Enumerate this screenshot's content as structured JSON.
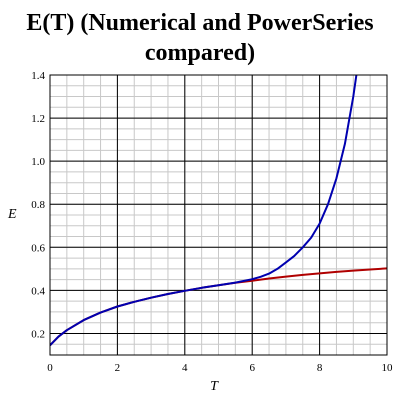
{
  "chart_data": {
    "type": "line",
    "title_lines": [
      "E(T) (Numerical and PowerSeries",
      "compared)"
    ],
    "xlabel": "T",
    "ylabel": "E",
    "xlim": [
      0,
      10
    ],
    "ylim": [
      0.1,
      1.4
    ],
    "x_ticks": [
      0,
      2,
      4,
      6,
      8,
      10
    ],
    "y_ticks": [
      0.2,
      0.4,
      0.6,
      0.8,
      1.0,
      1.2,
      1.4
    ],
    "y_tick_labels": [
      "0.2",
      "0.4",
      "0.6",
      "0.8",
      "1.0",
      "1.2",
      "1.4"
    ],
    "grid": true,
    "series": [
      {
        "color": "#b00000",
        "x": [
          0,
          0.25,
          0.5,
          1,
          1.5,
          2,
          2.5,
          3,
          3.5,
          4,
          4.5,
          5,
          5.5,
          6,
          6.5,
          7,
          7.5,
          8,
          8.5,
          9,
          9.5,
          10
        ],
        "y": [
          0.145,
          0.185,
          0.215,
          0.262,
          0.297,
          0.325,
          0.347,
          0.366,
          0.383,
          0.398,
          0.412,
          0.424,
          0.435,
          0.445,
          0.455,
          0.464,
          0.472,
          0.479,
          0.486,
          0.492,
          0.497,
          0.502
        ]
      },
      {
        "color": "#0000b0",
        "x": [
          0,
          0.25,
          0.5,
          1,
          1.5,
          2,
          2.5,
          3,
          3.5,
          4,
          4.5,
          5,
          5.5,
          6,
          6.25,
          6.5,
          6.75,
          7,
          7.25,
          7.5,
          7.75,
          8,
          8.25,
          8.5,
          8.75,
          9,
          9.1
        ],
        "y": [
          0.145,
          0.185,
          0.215,
          0.262,
          0.297,
          0.325,
          0.347,
          0.366,
          0.383,
          0.398,
          0.412,
          0.424,
          0.436,
          0.452,
          0.463,
          0.478,
          0.5,
          0.53,
          0.56,
          0.6,
          0.645,
          0.71,
          0.8,
          0.92,
          1.08,
          1.3,
          1.41
        ]
      }
    ]
  }
}
